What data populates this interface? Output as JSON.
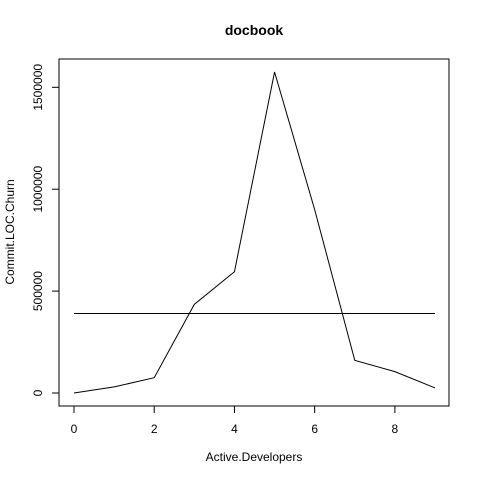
{
  "chart_data": {
    "type": "line",
    "title": "docbook",
    "xlabel": "Active.Developers",
    "ylabel": "Commit.LOC.Churn",
    "xlim": [
      0,
      9
    ],
    "ylim": [
      0,
      1580000
    ],
    "x_ticks": [
      0,
      2,
      4,
      6,
      8
    ],
    "x_tick_labels": [
      "0",
      "2",
      "4",
      "6",
      "8"
    ],
    "y_ticks": [
      0,
      500000,
      1000000,
      1500000
    ],
    "y_tick_labels": [
      "0",
      "500000",
      "1000000",
      "1500000"
    ],
    "series": [
      {
        "x": [
          0,
          1,
          2,
          3,
          4,
          5,
          6,
          7,
          8,
          9
        ],
        "y": [
          0,
          30000,
          75000,
          435000,
          595000,
          1575000,
          900000,
          160000,
          105000,
          25000
        ]
      },
      {
        "x": [
          0,
          9
        ],
        "y": [
          390000,
          390000
        ]
      }
    ],
    "grid": false,
    "legend": "none",
    "colors": {
      "line": "#000000",
      "axis": "#000000",
      "background": "#ffffff"
    }
  }
}
